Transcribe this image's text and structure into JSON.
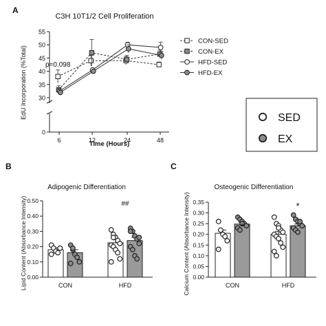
{
  "colors": {
    "sed_fill": "#ffffff",
    "ex_fill": "#9a9a9a",
    "line": "#333333",
    "open_marker": "#ffffff",
    "grey_marker": "#8c8c8c"
  },
  "legend_box": {
    "items": [
      {
        "label": "SED",
        "marker": "white-circle"
      },
      {
        "label": "EX",
        "marker": "grey-circle"
      }
    ]
  },
  "chart_data": [
    {
      "panel": "A",
      "type": "line",
      "title": "C3H 10T1/2 Cell Proliferation",
      "xlabel": "Time (Hours)",
      "ylabel": "EdU Incorporation (%Total)",
      "categories": [
        "6",
        "12",
        "24",
        "48"
      ],
      "yticks": [
        0,
        30,
        35,
        40,
        45,
        50,
        55
      ],
      "ylim_lower": [
        0,
        5
      ],
      "ylim_upper": [
        30,
        55
      ],
      "axis_break": true,
      "annotation": "p=0.098",
      "series": [
        {
          "name": "CON-SED",
          "marker": "square-open",
          "dash": true,
          "values": [
            38,
            44,
            44,
            42.5
          ],
          "err": [
            2.5,
            2,
            1.5,
            1
          ]
        },
        {
          "name": "CON-EX",
          "marker": "square-grey",
          "dash": true,
          "values": [
            33,
            47,
            44.5,
            46.5
          ],
          "err": [
            1.5,
            5,
            1.5,
            1.5
          ]
        },
        {
          "name": "HFD-SED",
          "marker": "circle-open",
          "dash": false,
          "values": [
            32.5,
            40.5,
            50,
            49
          ],
          "err": [
            1,
            0.5,
            1,
            2
          ]
        },
        {
          "name": "HFD-EX",
          "marker": "circle-grey",
          "dash": false,
          "values": [
            32,
            40,
            48.5,
            46
          ],
          "err": [
            1,
            0.5,
            1.5,
            1.5
          ]
        }
      ]
    },
    {
      "panel": "B",
      "type": "bar",
      "title": "Adipogenic Differentiation",
      "xlabel": "",
      "ylabel": "Lipid Content (Absorbance Intensity)",
      "categories": [
        "CON",
        "HFD"
      ],
      "yticks": [
        "0.00",
        "0.10",
        "0.20",
        "0.30",
        "0.40",
        "0.50"
      ],
      "ylim": [
        0,
        0.5
      ],
      "annotation": "##",
      "series": [
        {
          "name": "SED",
          "values": [
            0.18,
            0.225
          ],
          "err": [
            0.012,
            0.02
          ],
          "points": [
            [
              0.21,
              0.19,
              0.17,
              0.16,
              0.19,
              0.15
            ],
            [
              0.31,
              0.28,
              0.26,
              0.24,
              0.22,
              0.21,
              0.2,
              0.18,
              0.16,
              0.12,
              0.1,
              0.26
            ]
          ]
        },
        {
          "name": "EX",
          "values": [
            0.16,
            0.24
          ],
          "err": [
            0.02,
            0.022
          ],
          "points": [
            [
              0.21,
              0.18,
              0.15,
              0.13,
              0.1,
              0.09,
              0.19
            ],
            [
              0.32,
              0.3,
              0.27,
              0.25,
              0.22,
              0.2,
              0.18,
              0.14,
              0.12,
              0.26,
              0.3
            ]
          ]
        }
      ]
    },
    {
      "panel": "C",
      "type": "bar",
      "title": "Osteogenic Differentiation",
      "xlabel": "",
      "ylabel": "Calcium Content (Absorbance Intensity)",
      "categories": [
        "CON",
        "HFD"
      ],
      "yticks": [
        "0.00",
        "0.05",
        "0.10",
        "0.15",
        "0.20",
        "0.25",
        "0.30",
        "0.35"
      ],
      "ylim": [
        0,
        0.35
      ],
      "annotation": "*",
      "series": [
        {
          "name": "SED",
          "values": [
            0.205,
            0.2
          ],
          "err": [
            0.015,
            0.013
          ],
          "points": [
            [
              0.26,
              0.22,
              0.2,
              0.19,
              0.17,
              0.13
            ],
            [
              0.28,
              0.25,
              0.24,
              0.22,
              0.21,
              0.2,
              0.19,
              0.18,
              0.16,
              0.14,
              0.12,
              0.1,
              0.23
            ]
          ]
        },
        {
          "name": "EX",
          "values": [
            0.248,
            0.24
          ],
          "err": [
            0.008,
            0.008
          ],
          "points": [
            [
              0.28,
              0.27,
              0.26,
              0.25,
              0.24,
              0.23,
              0.22,
              0.25
            ],
            [
              0.29,
              0.27,
              0.26,
              0.25,
              0.24,
              0.23,
              0.22,
              0.21,
              0.26,
              0.24
            ]
          ]
        }
      ]
    }
  ]
}
